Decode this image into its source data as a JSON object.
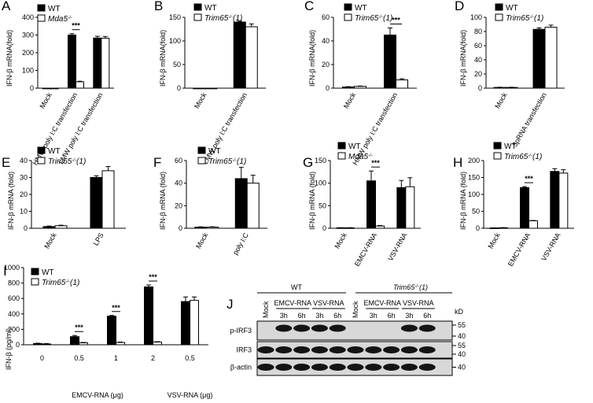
{
  "chart_data": [
    {
      "panel": "A",
      "type": "bar",
      "ylabel": "IFN-β mRNA(fold)",
      "ylim": [
        0,
        400
      ],
      "yticks": [
        0,
        100,
        200,
        300,
        400
      ],
      "legend": [
        "WT",
        "Mda5-/-"
      ],
      "categories": [
        "Mock",
        "HMW poly I:C transfection",
        "LMW poly I:C transfection"
      ],
      "series": [
        {
          "name": "WT",
          "values": [
            0,
            300,
            283
          ],
          "errors": [
            0,
            8,
            10
          ]
        },
        {
          "name": "Mda5-/-",
          "values": [
            0,
            36,
            282
          ],
          "errors": [
            0,
            3,
            10
          ]
        }
      ],
      "significance": [
        {
          "category": 1,
          "label": "***"
        }
      ]
    },
    {
      "panel": "B",
      "type": "bar",
      "ylabel": "IFN-β mRNA(fold)",
      "ylim": [
        0,
        150
      ],
      "yticks": [
        0,
        50,
        100,
        150
      ],
      "legend": [
        "WT",
        "Trim65-/-(1)"
      ],
      "categories": [
        "Mock",
        "LMW poly I:C transfection"
      ],
      "series": [
        {
          "name": "WT",
          "values": [
            0,
            140
          ],
          "errors": [
            0,
            2
          ]
        },
        {
          "name": "Trim65-/-(1)",
          "values": [
            0,
            130
          ],
          "errors": [
            0,
            6
          ]
        }
      ],
      "significance": []
    },
    {
      "panel": "C",
      "type": "bar",
      "ylabel": "IFN-β mRNA(fold)",
      "ylim": [
        0,
        60
      ],
      "yticks": [
        0,
        20,
        40,
        60
      ],
      "legend": [
        "WT",
        "Trim65-/-(1)"
      ],
      "categories": [
        "Mock",
        "HMW poly I:C transfection"
      ],
      "series": [
        {
          "name": "WT",
          "values": [
            1,
            45
          ],
          "errors": [
            0.3,
            6
          ]
        },
        {
          "name": "Trim65-/-(1)",
          "values": [
            1.5,
            7
          ],
          "errors": [
            0.3,
            1
          ]
        }
      ],
      "significance": [
        {
          "category": 1,
          "label": "***"
        }
      ]
    },
    {
      "panel": "D",
      "type": "bar",
      "ylabel": "IFN-β mRNA(fold)",
      "ylim": [
        0,
        100
      ],
      "yticks": [
        0,
        20,
        40,
        60,
        80,
        100
      ],
      "legend": [
        "WT",
        "Trim65-/-(1)"
      ],
      "categories": [
        "Mock",
        "3pRNA transfection"
      ],
      "series": [
        {
          "name": "WT",
          "values": [
            1,
            83
          ],
          "errors": [
            0.3,
            2
          ]
        },
        {
          "name": "Trim65-/-(1)",
          "values": [
            1,
            86
          ],
          "errors": [
            0.3,
            3
          ]
        }
      ],
      "significance": []
    },
    {
      "panel": "E",
      "type": "bar",
      "ylabel": "IFN-β mRNA (fold)",
      "ylim": [
        0,
        40
      ],
      "yticks": [
        0,
        10,
        20,
        30,
        40
      ],
      "legend": [
        "WT",
        "Trim65-/-(1)"
      ],
      "categories": [
        "Mock",
        "LPS"
      ],
      "series": [
        {
          "name": "WT",
          "values": [
            1,
            30
          ],
          "errors": [
            0.3,
            1
          ]
        },
        {
          "name": "Trim65-/-(1)",
          "values": [
            1.5,
            34
          ],
          "errors": [
            0.3,
            2.5
          ]
        }
      ],
      "significance": []
    },
    {
      "panel": "F",
      "type": "bar",
      "ylabel": "IFN-β mRNA (fold)",
      "ylim": [
        0,
        60
      ],
      "yticks": [
        0,
        20,
        40,
        60
      ],
      "legend": [
        "WT",
        "Trim65-/-(1)"
      ],
      "categories": [
        "Mock",
        "poly I:C"
      ],
      "series": [
        {
          "name": "WT",
          "values": [
            1,
            44
          ],
          "errors": [
            0.3,
            10
          ]
        },
        {
          "name": "Trim65-/-(1)",
          "values": [
            1,
            40
          ],
          "errors": [
            0.3,
            7
          ]
        }
      ],
      "significance": []
    },
    {
      "panel": "G",
      "type": "bar",
      "ylabel": "IFN-β mRNA (fold)",
      "ylim": [
        0,
        150
      ],
      "yticks": [
        0,
        50,
        100,
        150
      ],
      "legend": [
        "WT",
        "Mda5-/-"
      ],
      "categories": [
        "Mock",
        "EMCV-RNA",
        "VSV-RNA"
      ],
      "series": [
        {
          "name": "WT",
          "values": [
            1,
            105,
            90
          ],
          "errors": [
            0.3,
            22,
            16
          ]
        },
        {
          "name": "Mda5-/-",
          "values": [
            1,
            5,
            92
          ],
          "errors": [
            0.3,
            1,
            20
          ]
        }
      ],
      "significance": [
        {
          "category": 1,
          "label": "***"
        }
      ]
    },
    {
      "panel": "H",
      "type": "bar",
      "ylabel": "IFN-β mRNA (fold)",
      "ylim": [
        0,
        200
      ],
      "yticks": [
        0,
        50,
        100,
        150,
        200
      ],
      "legend": [
        "WT",
        "Trim65-/-(1)"
      ],
      "categories": [
        "Mock",
        "EMCV-RNA",
        "VSV-RNA"
      ],
      "series": [
        {
          "name": "WT",
          "values": [
            1,
            120,
            168
          ],
          "errors": [
            0.3,
            3,
            8
          ]
        },
        {
          "name": "Trim65-/-(1)",
          "values": [
            1.5,
            22,
            163
          ],
          "errors": [
            0.3,
            1,
            10
          ]
        }
      ],
      "significance": [
        {
          "category": 1,
          "label": "***"
        }
      ]
    },
    {
      "panel": "I",
      "type": "bar",
      "ylabel": "IFN-β (pg/ml)",
      "ylim": [
        0,
        1000
      ],
      "yticks": [
        0,
        200,
        400,
        600,
        800,
        1000
      ],
      "legend": [
        "WT",
        "Trim65-/-(1)"
      ],
      "categories": [
        "0",
        "0.5",
        "1",
        "2",
        "0.5"
      ],
      "group_labels": [
        {
          "text": "EMCV-RNA (μg)",
          "from": 0,
          "to": 3
        },
        {
          "text": "VSV-RNA (μg)",
          "from": 4,
          "to": 4
        }
      ],
      "series": [
        {
          "name": "WT",
          "values": [
            15,
            105,
            370,
            750,
            560
          ],
          "errors": [
            5,
            15,
            10,
            25,
            60
          ]
        },
        {
          "name": "Trim65-/-(1)",
          "values": [
            10,
            25,
            30,
            35,
            575
          ],
          "errors": [
            5,
            5,
            5,
            5,
            45
          ]
        }
      ],
      "significance": [
        {
          "category": 1,
          "label": "***"
        },
        {
          "category": 2,
          "label": "***"
        },
        {
          "category": 3,
          "label": "***"
        }
      ]
    }
  ],
  "labels": {
    "panel_letters": [
      "A",
      "B",
      "C",
      "D",
      "E",
      "F",
      "G",
      "H",
      "I",
      "J"
    ],
    "legend_wt": "WT",
    "mda5": {
      "base": "Mda5",
      "sup": "-/-"
    },
    "trim65": {
      "base": "Trim65",
      "sup": "-/-",
      "tail": "(1)"
    },
    "mock": "Mock"
  },
  "blot": {
    "groups": [
      {
        "name": "WT"
      },
      {
        "name_base": "Trim65",
        "name_sup": "-/-",
        "name_tail": "(1)"
      }
    ],
    "lane_conditions": [
      "Mock",
      "EMCV-RNA",
      "VSV-RNA",
      "Mock",
      "EMCV-RNA",
      "VSV-RNA"
    ],
    "times": [
      "3h",
      "6h",
      "3h",
      "6h",
      "3h",
      "6h",
      "3h",
      "6h"
    ],
    "rows": [
      {
        "label": "p-IRF3",
        "markers": [
          "55",
          "40"
        ],
        "bands": [
          0,
          1,
          1,
          1,
          1,
          0,
          0,
          0,
          1,
          1
        ]
      },
      {
        "label": "IRF3",
        "markers": [
          "55",
          "40"
        ],
        "bands": [
          1,
          1,
          1,
          1,
          1,
          1,
          1,
          1,
          1,
          1
        ]
      },
      {
        "label": "β-actin",
        "markers": [
          "40"
        ],
        "bands": [
          1,
          1,
          1,
          1,
          1,
          1,
          1,
          1,
          1,
          1
        ]
      }
    ],
    "kd_label": "kD"
  },
  "colors": {
    "wt": "#000000",
    "ko": "#ffffff",
    "stroke": "#000000",
    "blot_bg": "#d8d8d8",
    "band": "#141414"
  }
}
